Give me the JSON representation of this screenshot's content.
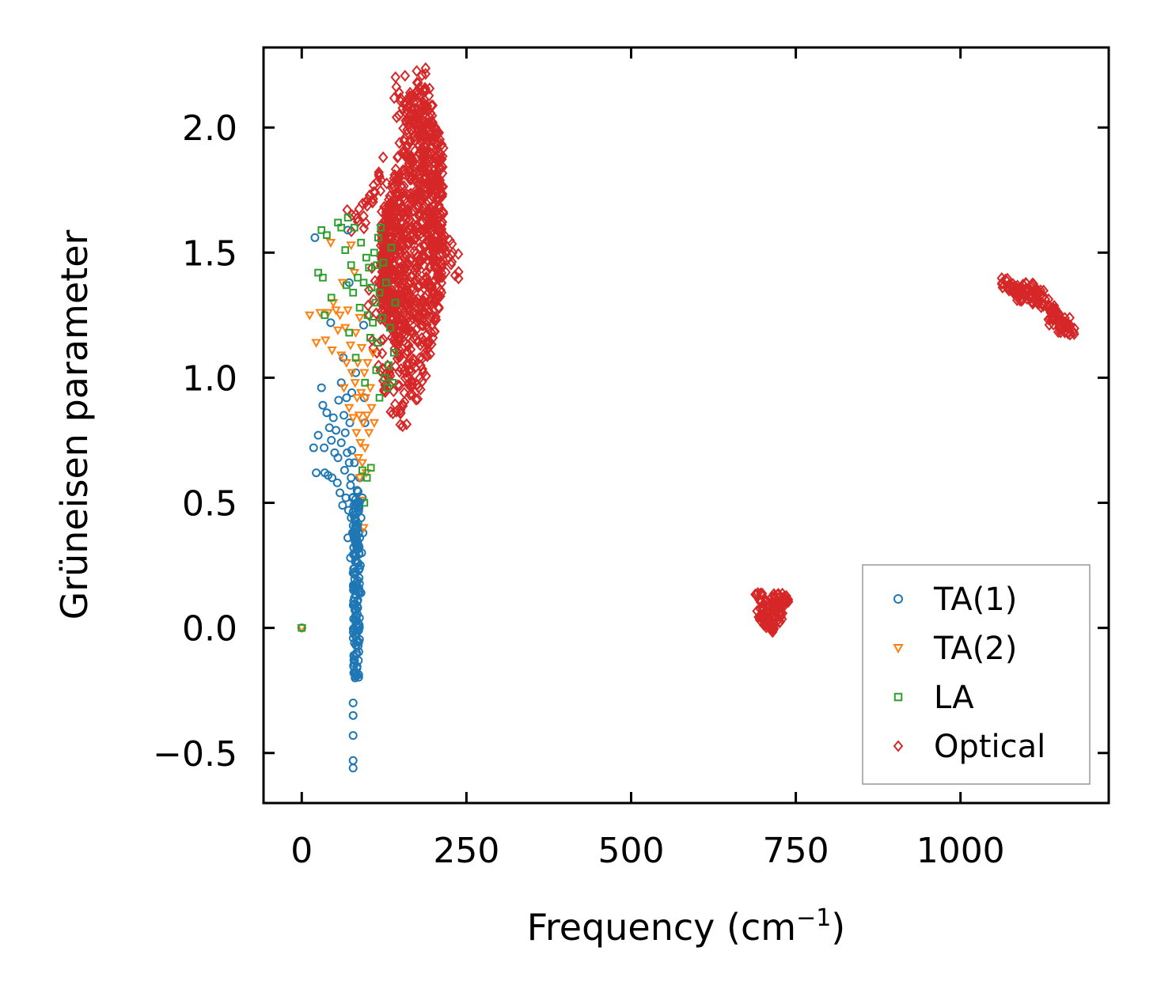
{
  "chart_data": {
    "type": "scatter",
    "title": "",
    "xlabel": "Frequency (cm",
    "xlabel_sup": "−1",
    "xlabel_suffix": ")",
    "ylabel": "Grüneisen parameter",
    "xlim": [
      -58,
      1225
    ],
    "ylim": [
      -0.7,
      2.32
    ],
    "xticks": [
      0,
      250,
      500,
      750,
      1000
    ],
    "xtick_labels": [
      "0",
      "250",
      "500",
      "750",
      "1000"
    ],
    "yticks": [
      -0.5,
      0.0,
      0.5,
      1.0,
      1.5,
      2.0
    ],
    "ytick_labels": [
      "−0.5",
      "0.0",
      "0.5",
      "1.0",
      "1.5",
      "2.0"
    ],
    "grid": false,
    "legend_position": "bottom-right",
    "series": [
      {
        "name": "TA(1)",
        "color": "#1f77b4",
        "marker": "circle",
        "points": [
          [
            0,
            0.0
          ],
          [
            20,
            1.56
          ],
          [
            18,
            0.72
          ],
          [
            22,
            0.62
          ],
          [
            25,
            0.77
          ],
          [
            30,
            0.96
          ],
          [
            32,
            0.89
          ],
          [
            34,
            0.72
          ],
          [
            35,
            0.62
          ],
          [
            38,
            0.86
          ],
          [
            40,
            0.61
          ],
          [
            42,
            0.8
          ],
          [
            44,
            1.22
          ],
          [
            45,
            0.75
          ],
          [
            46,
            0.6
          ],
          [
            48,
            0.84
          ],
          [
            50,
            0.7
          ],
          [
            52,
            0.79
          ],
          [
            54,
            0.58
          ],
          [
            55,
            0.68
          ],
          [
            56,
            0.91
          ],
          [
            58,
            0.54
          ],
          [
            60,
            0.98
          ],
          [
            60,
            0.74
          ],
          [
            62,
            0.49
          ],
          [
            63,
            1.08
          ],
          [
            64,
            0.85
          ],
          [
            65,
            0.63
          ],
          [
            66,
            0.78
          ],
          [
            67,
            0.52
          ],
          [
            68,
            0.92
          ],
          [
            69,
            0.7
          ],
          [
            70,
            0.36
          ],
          [
            70,
            1.59
          ],
          [
            71,
            0.47
          ],
          [
            72,
            0.66
          ],
          [
            72,
            1.38
          ],
          [
            73,
            0.82
          ],
          [
            74,
            0.57
          ],
          [
            74,
            0.28
          ],
          [
            75,
            0.44
          ],
          [
            75,
            0.6
          ],
          [
            76,
            0.94
          ],
          [
            76,
            0.71
          ],
          [
            77,
            0.38
          ],
          [
            77,
            0.52
          ],
          [
            78,
            0.22
          ],
          [
            78,
            -0.3
          ],
          [
            78,
            -0.35
          ],
          [
            78,
            -0.43
          ],
          [
            78,
            -0.53
          ],
          [
            78,
            -0.56
          ],
          [
            79,
            0.45
          ],
          [
            79,
            -0.18
          ],
          [
            79,
            -0.11
          ],
          [
            80,
            -0.06
          ],
          [
            80,
            0.12
          ],
          [
            80,
            0.66
          ],
          [
            81,
            0.3
          ],
          [
            81,
            -0.2
          ],
          [
            82,
            0.05
          ],
          [
            82,
            1.02
          ],
          [
            83,
            -0.03
          ],
          [
            83,
            0.17
          ],
          [
            84,
            0.55
          ],
          [
            84,
            0.26
          ],
          [
            85,
            0.4
          ],
          [
            85,
            0.08
          ],
          [
            86,
            0.33
          ],
          [
            86,
            -0.13
          ],
          [
            87,
            0.2
          ],
          [
            87,
            0.48
          ],
          [
            88,
            0.6
          ],
          [
            88,
            0.36
          ],
          [
            89,
            0.25
          ],
          [
            90,
            0.44
          ],
          [
            90,
            0.14
          ],
          [
            91,
            0.3
          ],
          [
            92,
            0.52
          ],
          [
            93,
            0.38
          ],
          [
            94,
            1.21
          ],
          [
            95,
            0.92
          ],
          [
            96,
            0.82
          ]
        ]
      },
      {
        "name": "TA(2)",
        "color": "#ff7f0e",
        "marker": "triangle-down",
        "points": [
          [
            0,
            0.0
          ],
          [
            12,
            1.25
          ],
          [
            22,
            1.14
          ],
          [
            28,
            1.26
          ],
          [
            36,
            1.15
          ],
          [
            40,
            1.26
          ],
          [
            44,
            1.54
          ],
          [
            46,
            1.11
          ],
          [
            48,
            1.3
          ],
          [
            52,
            1.27
          ],
          [
            55,
            1.19
          ],
          [
            58,
            1.25
          ],
          [
            60,
            1.09
          ],
          [
            62,
            1.38
          ],
          [
            64,
            0.96
          ],
          [
            66,
            1.2
          ],
          [
            68,
            1.06
          ],
          [
            70,
            1.27
          ],
          [
            72,
            0.88
          ],
          [
            74,
            1.13
          ],
          [
            75,
            1.53
          ],
          [
            76,
            1.02
          ],
          [
            78,
            0.84
          ],
          [
            80,
            1.42
          ],
          [
            81,
            0.98
          ],
          [
            82,
            1.18
          ],
          [
            83,
            0.78
          ],
          [
            84,
            0.92
          ],
          [
            85,
            1.06
          ],
          [
            86,
            0.68
          ],
          [
            87,
            0.85
          ],
          [
            88,
            0.6
          ],
          [
            88,
            1.24
          ],
          [
            89,
            0.74
          ],
          [
            90,
            0.94
          ],
          [
            90,
            0.51
          ],
          [
            91,
            1.12
          ],
          [
            92,
            0.66
          ],
          [
            93,
            0.82
          ],
          [
            94,
            0.4
          ],
          [
            95,
            1.02
          ],
          [
            96,
            0.72
          ],
          [
            97,
            0.92
          ],
          [
            98,
            0.62
          ],
          [
            99,
            0.85
          ],
          [
            100,
            1.06
          ],
          [
            102,
            0.78
          ],
          [
            104,
            0.96
          ],
          [
            106,
            0.88
          ],
          [
            108,
            1.1
          ],
          [
            110,
            0.82
          ]
        ]
      },
      {
        "name": "LA",
        "color": "#2ca02c",
        "marker": "square",
        "points": [
          [
            0,
            0.0
          ],
          [
            25,
            1.42
          ],
          [
            30,
            1.59
          ],
          [
            32,
            1.4
          ],
          [
            35,
            1.25
          ],
          [
            38,
            1.57
          ],
          [
            45,
            1.32
          ],
          [
            55,
            1.62
          ],
          [
            60,
            1.6
          ],
          [
            66,
            1.51
          ],
          [
            68,
            1.37
          ],
          [
            70,
            1.64
          ],
          [
            72,
            1.18
          ],
          [
            75,
            1.45
          ],
          [
            78,
            1.34
          ],
          [
            80,
            1.6
          ],
          [
            82,
            1.08
          ],
          [
            85,
            1.4
          ],
          [
            88,
            1.28
          ],
          [
            90,
            1.54
          ],
          [
            92,
            0.63
          ],
          [
            94,
            1.38
          ],
          [
            95,
            0.5
          ],
          [
            96,
            0.98
          ],
          [
            98,
            1.48
          ],
          [
            99,
            0.6
          ],
          [
            100,
            1.25
          ],
          [
            102,
            1.44
          ],
          [
            104,
            1.16
          ],
          [
            105,
            0.64
          ],
          [
            106,
            1.36
          ],
          [
            108,
            1.22
          ],
          [
            110,
            1.5
          ],
          [
            112,
            1.3
          ],
          [
            113,
            1.03
          ],
          [
            114,
            1.45
          ],
          [
            115,
            1.14
          ],
          [
            116,
            1.56
          ],
          [
            118,
            1.34
          ],
          [
            118,
            0.92
          ],
          [
            120,
            1.6
          ],
          [
            122,
            1.24
          ],
          [
            124,
            1.46
          ],
          [
            126,
            1.0
          ],
          [
            128,
            1.38
          ],
          [
            130,
            0.96
          ],
          [
            132,
            1.05
          ],
          [
            134,
            1.2
          ],
          [
            136,
            1.52
          ],
          [
            138,
            0.98
          ],
          [
            140,
            1.1
          ],
          [
            142,
            1.3
          ]
        ]
      },
      {
        "name": "Optical",
        "color": "#d62728",
        "marker": "diamond",
        "cluster_points": [
          [
            80,
            1.62
          ],
          [
            90,
            1.65
          ],
          [
            100,
            1.72
          ],
          [
            110,
            1.74
          ],
          [
            120,
            1.83
          ],
          [
            125,
            1.66
          ],
          [
            115,
            1.4
          ],
          [
            110,
            1.3
          ],
          [
            118,
            1.18
          ],
          [
            125,
            1.05
          ],
          [
            130,
            0.98
          ],
          [
            135,
            0.92
          ],
          [
            140,
            0.98
          ],
          [
            145,
            0.88
          ],
          [
            150,
            0.85
          ],
          [
            138,
            1.2
          ],
          [
            148,
            1.28
          ],
          [
            155,
            1.44
          ],
          [
            160,
            1.6
          ],
          [
            150,
            2.15
          ],
          [
            155,
            2.1
          ],
          [
            162,
            2.04
          ],
          [
            170,
            2.0
          ],
          [
            178,
            2.18
          ],
          [
            185,
            2.12
          ],
          [
            190,
            2.05
          ],
          [
            195,
            1.9
          ],
          [
            200,
            1.75
          ],
          [
            205,
            1.65
          ],
          [
            210,
            1.55
          ],
          [
            220,
            1.5
          ],
          [
            228,
            1.45
          ],
          [
            185,
            1.3
          ],
          [
            180,
            1.25
          ],
          [
            170,
            1.4
          ],
          [
            165,
            1.55
          ],
          [
            158,
            1.85
          ],
          [
            172,
            1.75
          ],
          [
            186,
            1.6
          ],
          [
            196,
            1.48
          ],
          [
            142,
            1.55
          ],
          [
            132,
            1.48
          ],
          [
            126,
            1.28
          ],
          [
            150,
            1.1
          ],
          [
            160,
            1.32
          ],
          [
            176,
            1.9
          ]
        ],
        "band_points": [
          [
            695,
            0.12
          ],
          [
            700,
            0.08
          ],
          [
            705,
            0.03
          ],
          [
            710,
            0.0
          ],
          [
            715,
            0.06
          ],
          [
            720,
            0.12
          ],
          [
            725,
            0.1
          ],
          [
            730,
            0.12
          ],
          [
            735,
            0.11
          ],
          [
            728,
            0.04
          ],
          [
            718,
            0.01
          ],
          [
            708,
            0.02
          ],
          [
            698,
            0.05
          ],
          [
            703,
            0.1
          ],
          [
            712,
            0.09
          ],
          [
            722,
            0.07
          ],
          [
            1065,
            1.38
          ],
          [
            1075,
            1.36
          ],
          [
            1085,
            1.34
          ],
          [
            1095,
            1.36
          ],
          [
            1105,
            1.37
          ],
          [
            1112,
            1.35
          ],
          [
            1120,
            1.33
          ],
          [
            1128,
            1.3
          ],
          [
            1136,
            1.28
          ],
          [
            1144,
            1.26
          ],
          [
            1152,
            1.24
          ],
          [
            1160,
            1.22
          ],
          [
            1168,
            1.19
          ],
          [
            1090,
            1.32
          ],
          [
            1115,
            1.3
          ],
          [
            1140,
            1.23
          ],
          [
            1100,
            1.33
          ],
          [
            1155,
            1.2
          ],
          [
            1080,
            1.35
          ]
        ]
      }
    ],
    "legend_entries": [
      {
        "label": "TA(1)",
        "color": "#1f77b4",
        "marker": "circle"
      },
      {
        "label": "TA(2)",
        "color": "#ff7f0e",
        "marker": "triangle-down"
      },
      {
        "label": "LA",
        "color": "#2ca02c",
        "marker": "square"
      },
      {
        "label": "Optical",
        "color": "#d62728",
        "marker": "diamond"
      }
    ]
  }
}
